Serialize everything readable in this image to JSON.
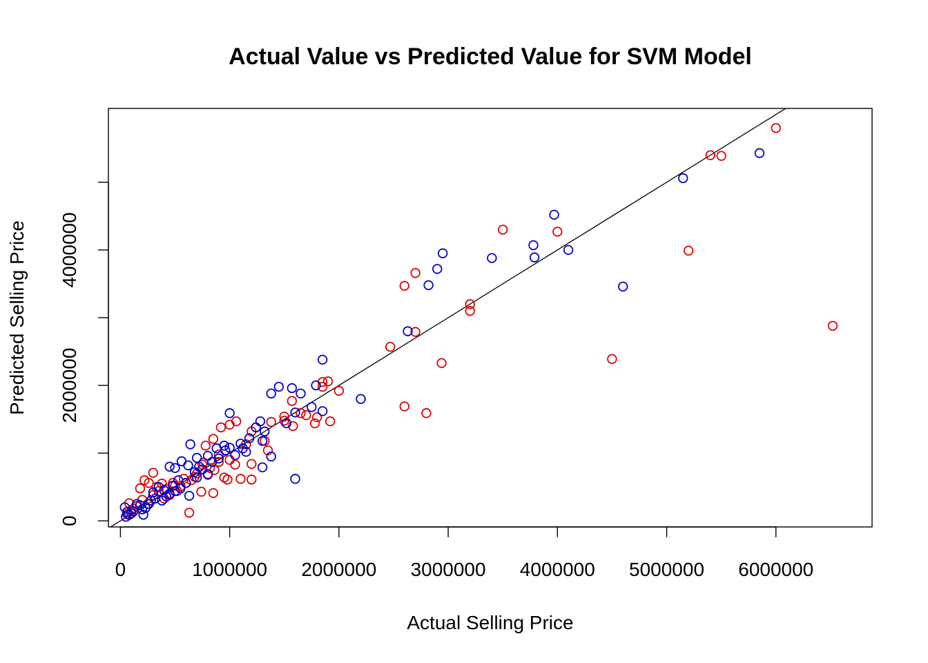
{
  "chart_data": {
    "type": "scatter",
    "title": "Actual Value vs Predicted Value for SVM  Model",
    "xlabel": "Actual Selling Price",
    "ylabel": "Predicted Selling Price",
    "xlim": [
      -110000,
      6880000
    ],
    "ylim": [
      -90000,
      6090000
    ],
    "x_ticks": [
      0,
      1000000,
      2000000,
      3000000,
      4000000,
      5000000,
      6000000
    ],
    "x_tick_labels": [
      "0",
      "1000000",
      "2000000",
      "3000000",
      "4000000",
      "5000000",
      "6000000"
    ],
    "y_ticks": [
      0,
      1000000,
      2000000,
      3000000,
      4000000,
      5000000
    ],
    "y_tick_labels": [
      "0",
      "",
      "2000000",
      "",
      "4000000",
      ""
    ],
    "reference_line": {
      "intercept": 0,
      "slope": 1
    },
    "series_colors": [
      "#dd0000",
      "#0000cc"
    ],
    "series": [
      {
        "color": "#dd0000",
        "points": [
          [
            6000000,
            5800000
          ],
          [
            5400000,
            5400000
          ],
          [
            5500000,
            5390000
          ],
          [
            3500000,
            4300000
          ],
          [
            4000000,
            4270000
          ],
          [
            5200000,
            3990000
          ],
          [
            2700000,
            3660000
          ],
          [
            2600000,
            3470000
          ],
          [
            3200000,
            3200000
          ],
          [
            3200000,
            3100000
          ],
          [
            2700000,
            2790000
          ],
          [
            2470000,
            2570000
          ],
          [
            6520000,
            2880000
          ],
          [
            4500000,
            2390000
          ],
          [
            2940000,
            2330000
          ],
          [
            2000000,
            1920000
          ],
          [
            1900000,
            2060000
          ],
          [
            1850000,
            2050000
          ],
          [
            1850000,
            1980000
          ],
          [
            1570000,
            1770000
          ],
          [
            1800000,
            1530000
          ],
          [
            1920000,
            1470000
          ],
          [
            1700000,
            1560000
          ],
          [
            1650000,
            1590000
          ],
          [
            1500000,
            1540000
          ],
          [
            1780000,
            1440000
          ],
          [
            1500000,
            1480000
          ],
          [
            1580000,
            1400000
          ],
          [
            2600000,
            1690000
          ],
          [
            2800000,
            1590000
          ],
          [
            1380000,
            1460000
          ],
          [
            1320000,
            1180000
          ],
          [
            1060000,
            1470000
          ],
          [
            1000000,
            1420000
          ],
          [
            920000,
            1380000
          ],
          [
            850000,
            1210000
          ],
          [
            780000,
            1110000
          ],
          [
            1200000,
            1320000
          ],
          [
            1150000,
            1130000
          ],
          [
            1350000,
            1040000
          ],
          [
            900000,
            980000
          ],
          [
            1000000,
            900000
          ],
          [
            1050000,
            830000
          ],
          [
            1200000,
            840000
          ],
          [
            1100000,
            620000
          ],
          [
            1200000,
            610000
          ],
          [
            980000,
            610000
          ],
          [
            950000,
            640000
          ],
          [
            860000,
            750000
          ],
          [
            800000,
            680000
          ],
          [
            750000,
            830000
          ],
          [
            700000,
            700000
          ],
          [
            650000,
            600000
          ],
          [
            600000,
            560000
          ],
          [
            630000,
            120000
          ],
          [
            850000,
            410000
          ],
          [
            740000,
            430000
          ],
          [
            500000,
            520000
          ],
          [
            420000,
            470000
          ],
          [
            380000,
            550000
          ],
          [
            300000,
            710000
          ],
          [
            260000,
            560000
          ],
          [
            220000,
            600000
          ],
          [
            180000,
            480000
          ],
          [
            300000,
            380000
          ],
          [
            250000,
            250000
          ],
          [
            200000,
            310000
          ],
          [
            150000,
            220000
          ],
          [
            120000,
            180000
          ],
          [
            100000,
            150000
          ],
          [
            80000,
            260000
          ],
          [
            60000,
            100000
          ],
          [
            400000,
            330000
          ],
          [
            450000,
            380000
          ],
          [
            550000,
            510000
          ],
          [
            680000,
            650000
          ],
          [
            330000,
            500000
          ],
          [
            350000,
            440000
          ],
          [
            480000,
            560000
          ],
          [
            520000,
            440000
          ],
          [
            580000,
            620000
          ],
          [
            820000,
            780000
          ],
          [
            760000,
            860000
          ],
          [
            900000,
            870000
          ]
        ]
      },
      {
        "color": "#0000cc",
        "points": [
          [
            5850000,
            5430000
          ],
          [
            5150000,
            5060000
          ],
          [
            3970000,
            4520000
          ],
          [
            3780000,
            4070000
          ],
          [
            4100000,
            4000000
          ],
          [
            2950000,
            3950000
          ],
          [
            3400000,
            3880000
          ],
          [
            3790000,
            3890000
          ],
          [
            2900000,
            3720000
          ],
          [
            2820000,
            3480000
          ],
          [
            4600000,
            3460000
          ],
          [
            2630000,
            2800000
          ],
          [
            1850000,
            2380000
          ],
          [
            2200000,
            1800000
          ],
          [
            1450000,
            1980000
          ],
          [
            1380000,
            1880000
          ],
          [
            1570000,
            1960000
          ],
          [
            1650000,
            1880000
          ],
          [
            1790000,
            2000000
          ],
          [
            1750000,
            1680000
          ],
          [
            1850000,
            1620000
          ],
          [
            1600000,
            1600000
          ],
          [
            1520000,
            1440000
          ],
          [
            1280000,
            1470000
          ],
          [
            1240000,
            1380000
          ],
          [
            1320000,
            1320000
          ],
          [
            1000000,
            1590000
          ],
          [
            1180000,
            1220000
          ],
          [
            1100000,
            1140000
          ],
          [
            1000000,
            1080000
          ],
          [
            1300000,
            1180000
          ],
          [
            1600000,
            620000
          ],
          [
            1300000,
            790000
          ],
          [
            1380000,
            950000
          ],
          [
            1150000,
            1020000
          ],
          [
            1050000,
            970000
          ],
          [
            880000,
            1070000
          ],
          [
            950000,
            1110000
          ],
          [
            800000,
            960000
          ],
          [
            700000,
            930000
          ],
          [
            640000,
            1130000
          ],
          [
            560000,
            880000
          ],
          [
            500000,
            780000
          ],
          [
            450000,
            800000
          ],
          [
            620000,
            820000
          ],
          [
            750000,
            760000
          ],
          [
            800000,
            690000
          ],
          [
            700000,
            640000
          ],
          [
            600000,
            560000
          ],
          [
            550000,
            480000
          ],
          [
            500000,
            440000
          ],
          [
            630000,
            370000
          ],
          [
            450000,
            400000
          ],
          [
            400000,
            450000
          ],
          [
            350000,
            500000
          ],
          [
            300000,
            420000
          ],
          [
            320000,
            330000
          ],
          [
            280000,
            300000
          ],
          [
            260000,
            250000
          ],
          [
            230000,
            190000
          ],
          [
            200000,
            170000
          ],
          [
            180000,
            230000
          ],
          [
            150000,
            250000
          ],
          [
            120000,
            140000
          ],
          [
            100000,
            110000
          ],
          [
            80000,
            90000
          ],
          [
            60000,
            130000
          ],
          [
            50000,
            60000
          ],
          [
            40000,
            200000
          ],
          [
            210000,
            90000
          ],
          [
            380000,
            300000
          ],
          [
            420000,
            360000
          ],
          [
            480000,
            520000
          ],
          [
            530000,
            600000
          ],
          [
            680000,
            720000
          ],
          [
            720000,
            800000
          ],
          [
            840000,
            870000
          ],
          [
            900000,
            920000
          ],
          [
            960000,
            1040000
          ],
          [
            1120000,
            1070000
          ]
        ]
      }
    ]
  }
}
